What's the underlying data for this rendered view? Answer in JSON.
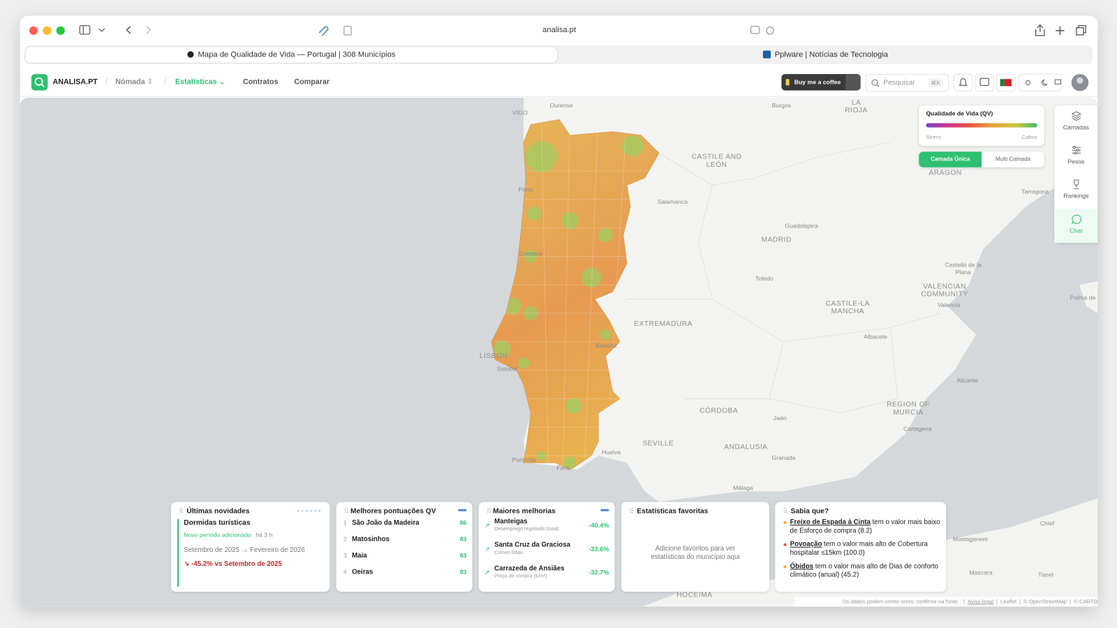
{
  "browser": {
    "address": "analisa.pt",
    "tabs": [
      "Mapa de Qualidade de Vida — Portugal | 308 Municípios",
      "Pplware | Notícias de Tecnologia"
    ]
  },
  "nav": {
    "brand": "ANALISA.PT",
    "items": [
      "Nómada",
      "Estatísticas",
      "Contratos",
      "Comparar"
    ],
    "coffee": "Buy me a coffee",
    "search": "Pesquisar",
    "shortcut": "⌘K"
  },
  "legend": {
    "title": "Qualidade de Vida (QV)",
    "low": "Stress",
    "high": "Calmo",
    "modes": [
      "Camada Única",
      "Multi Camada"
    ]
  },
  "sidebar": [
    "Camadas",
    "Pesos",
    "Rankings",
    "Chat"
  ],
  "map_labels": [
    "VIGO",
    "Ourense",
    "Burgos",
    "LA RIOJA",
    "CASTILE AND LEÓN",
    "Porto",
    "Salamanca",
    "Guadalajara",
    "MADRID",
    "ARAGON",
    "Tarragona",
    "Coimbra",
    "Toledo",
    "Castelló de la Plana",
    "VALENCIAN COMMUNITY",
    "Valencia",
    "CASTILE-LA MANCHA",
    "Palma de",
    "EXTREMADURA",
    "LISBON",
    "Setúbal",
    "Badajoz",
    "Albacete",
    "Alicante",
    "CÓRDOBA",
    "Jaén",
    "REGION OF MURCIA",
    "Cartagena",
    "SEVILLE",
    "ANDALUSIA",
    "Granada",
    "Huelva",
    "Portimão",
    "Faro",
    "Málaga",
    "Chlef",
    "Mostaganem",
    "Mascara",
    "Tiaret",
    "HOCEIMA"
  ],
  "panels": {
    "news": {
      "title": "Últimas novidades",
      "item": "Dormidas turísticas",
      "badge": "Novo período adicionado",
      "time": "há 3 h",
      "period": "Setembro de 2025 → Fevereiro de 2026",
      "change": "-45.2% vs Setembro de 2025"
    },
    "top": {
      "title": "Melhores pontuações QV",
      "rows": [
        {
          "rank": 1,
          "name": "São João da Madeira",
          "score": 86
        },
        {
          "rank": 2,
          "name": "Matosinhos",
          "score": 83
        },
        {
          "rank": 3,
          "name": "Maia",
          "score": 83
        },
        {
          "rank": 4,
          "name": "Oeiras",
          "score": 83
        }
      ]
    },
    "improvements": {
      "title": "Maiores melhorias",
      "rows": [
        {
          "name": "Manteigas",
          "metric": "Desemprego registado (total)",
          "change": "-40.4%"
        },
        {
          "name": "Santa Cruz da Graciosa",
          "metric": "Crimes totais",
          "change": "-33.6%"
        },
        {
          "name": "Carrazeda de Ansiães",
          "metric": "Preço de compra (€/m²)",
          "change": "-32.7%"
        }
      ]
    },
    "favorites": {
      "title": "Estatísticas favoritas",
      "empty": "Adicione favoritos para ver estatísticas do município aqui"
    },
    "facts": {
      "title": "Sabia que?",
      "items": [
        {
          "name": "Freixo de Espada à Cinta",
          "text": "tem o valor mais baixo de Esforço de compra (8.2)"
        },
        {
          "name": "Povoação",
          "text": "tem o valor mais alto de Cobertura hospitalar ≤15km (100.0)"
        },
        {
          "name": "Óbidos",
          "text": "tem o valor mais alto de Dias de conforto climático (anual) (45.2)"
        }
      ]
    }
  },
  "footer": {
    "note": "Os dados podem conter erros; confirme na fonte.",
    "links": [
      "Aviso legal",
      "Leaflet",
      "© OpenStreetMap",
      "© CARTO"
    ]
  }
}
